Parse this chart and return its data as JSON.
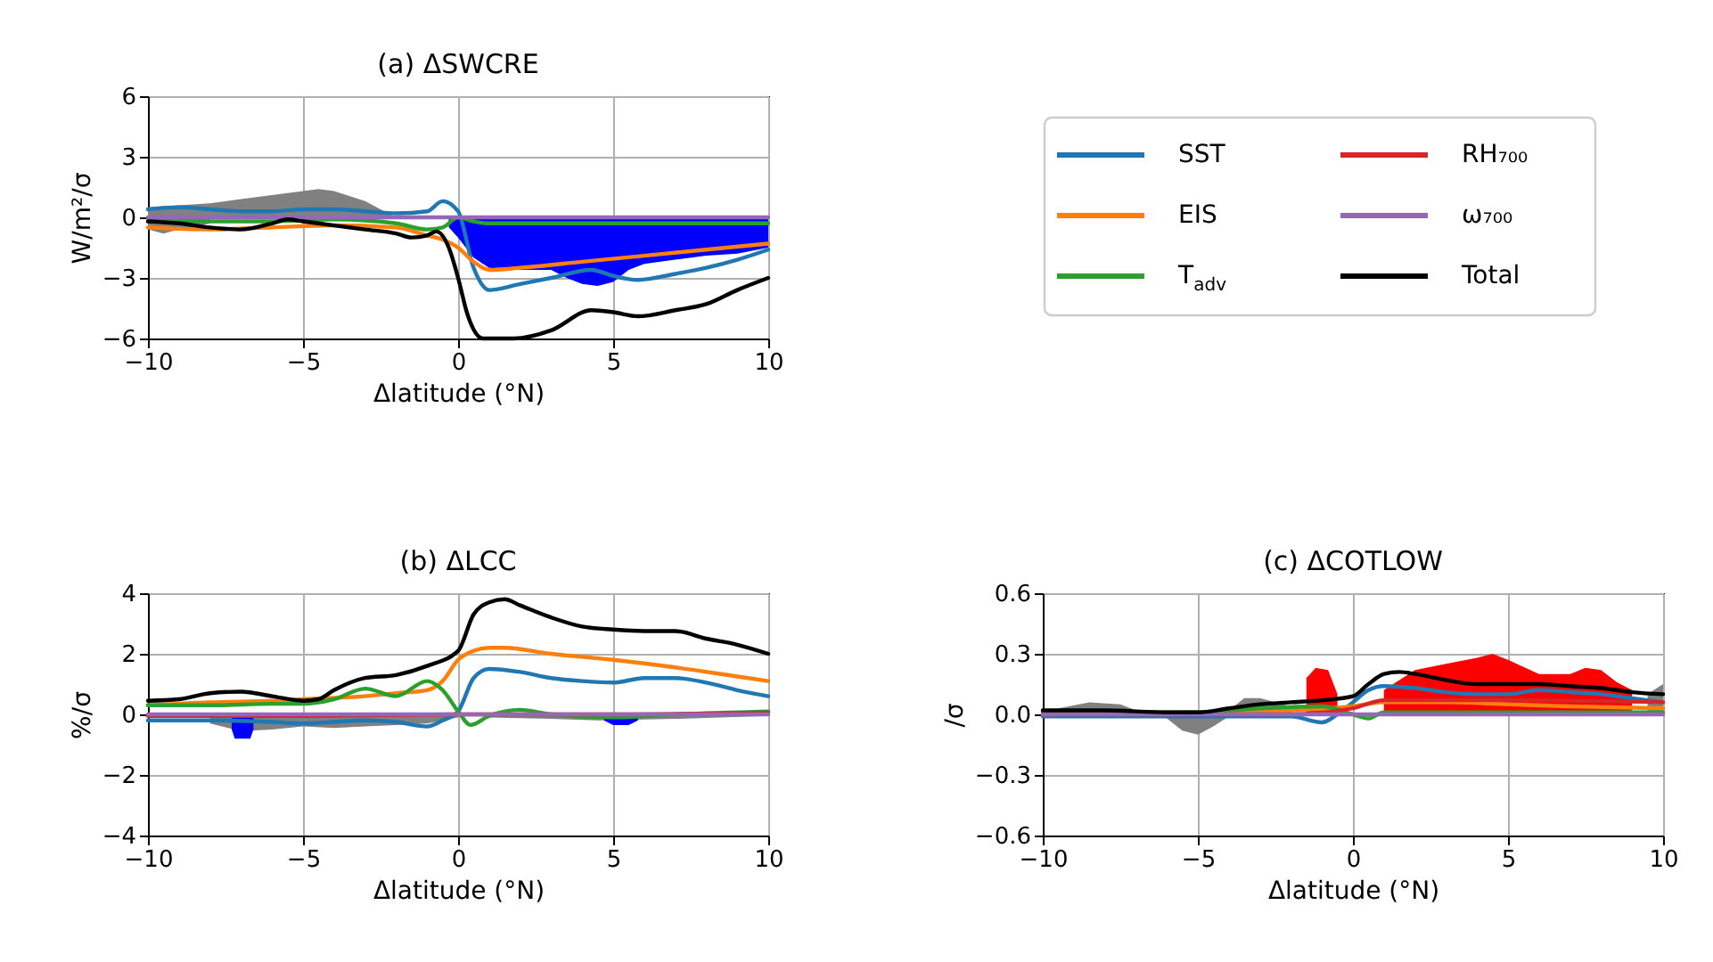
{
  "chart_data": [
    {
      "type": "line",
      "title": "(a) ΔSWCRE",
      "xlabel": "Δlatitude (°N)",
      "ylabel": "W/m²/σ",
      "xlim": [
        -10,
        10
      ],
      "xticks": [
        -10,
        -5,
        0,
        5,
        10
      ],
      "ylim": [
        -6,
        6
      ],
      "yticks": [
        -6,
        -3,
        0,
        3,
        6
      ],
      "grid": true,
      "legend": "right",
      "series": [
        {
          "type": "area",
          "color": "#808080",
          "x": [
            -10,
            -9,
            -8,
            -7,
            -6,
            -5,
            -4.5,
            -4,
            -3,
            -2.5,
            -2
          ],
          "values": [
            0.5,
            0.6,
            0.7,
            0.9,
            1.1,
            1.3,
            1.4,
            1.3,
            0.8,
            0.4,
            0
          ]
        },
        {
          "type": "area",
          "color": "#808080",
          "x": [
            -10,
            -9.5,
            -9,
            -8.5,
            -8
          ],
          "values": [
            -0.6,
            -0.8,
            -0.6,
            -0.5,
            -0.3
          ]
        },
        {
          "type": "area",
          "color": "#0000ff",
          "x": [
            -0.3,
            0,
            0.5,
            1,
            2,
            3,
            3.5,
            4,
            4.5,
            5,
            5.5,
            6,
            7,
            8,
            9,
            10
          ],
          "values": [
            -0.5,
            -1,
            -2.0,
            -2.5,
            -2.6,
            -2.6,
            -3.0,
            -3.3,
            -3.4,
            -3.2,
            -2.6,
            -2.3,
            -2.1,
            -1.9,
            -1.8,
            -1.5
          ]
        },
        {
          "name": "SST",
          "color": "#1f77b4",
          "x": [
            -10,
            -9,
            -8,
            -7,
            -6,
            -5,
            -4,
            -3,
            -2,
            -1,
            -0.5,
            0,
            0.5,
            1,
            2,
            3,
            4.3,
            5,
            5.8,
            7,
            8,
            9,
            10
          ],
          "values": [
            0.4,
            0.5,
            0.4,
            0.3,
            0.3,
            0.4,
            0.4,
            0.3,
            0.2,
            0.3,
            0.8,
            0.3,
            -2.5,
            -3.6,
            -3.3,
            -3.0,
            -2.6,
            -2.9,
            -3.1,
            -2.8,
            -2.5,
            -2.1,
            -1.6
          ]
        },
        {
          "name": "EIS",
          "color": "#ff7f0e",
          "x": [
            -10,
            -8,
            -6,
            -4,
            -2,
            -1,
            -0.5,
            0,
            0.5,
            1,
            2,
            4,
            6,
            8,
            10
          ],
          "values": [
            -0.5,
            -0.6,
            -0.5,
            -0.4,
            -0.5,
            -0.9,
            -1.1,
            -1.5,
            -2.2,
            -2.6,
            -2.5,
            -2.2,
            -1.9,
            -1.6,
            -1.3
          ]
        },
        {
          "name": "T$_{adv}$",
          "color": "#2ca02c",
          "x": [
            -10,
            -6,
            -4,
            -2,
            -1,
            -0.5,
            0,
            0.5,
            1,
            3,
            6,
            10
          ],
          "values": [
            -0.2,
            -0.2,
            -0.1,
            -0.3,
            -0.6,
            -0.5,
            0,
            -0.2,
            -0.3,
            -0.3,
            -0.3,
            -0.3
          ]
        },
        {
          "name": "RH₇₀₀",
          "color": "#d62728"
        },
        {
          "name": "ω₇₀₀",
          "color": "#9467bd",
          "x": [
            -10,
            10
          ],
          "values": [
            0,
            0
          ]
        },
        {
          "name": "Total",
          "color": "#000000",
          "x": [
            -10,
            -9,
            -8,
            -7,
            -6,
            -5.5,
            -5,
            -4,
            -3,
            -2,
            -1.5,
            -1,
            -0.7,
            -0.3,
            0,
            0.3,
            0.8,
            1.8,
            3,
            4.3,
            5,
            5.8,
            7,
            8,
            9,
            10
          ],
          "values": [
            -0.2,
            -0.3,
            -0.5,
            -0.6,
            -0.3,
            -0.1,
            -0.2,
            -0.4,
            -0.6,
            -0.8,
            -1.0,
            -0.9,
            -0.7,
            -1.5,
            -3,
            -4.8,
            -6,
            -6,
            -5.6,
            -4.6,
            -4.7,
            -4.9,
            -4.6,
            -4.3,
            -3.6,
            -3.0
          ]
        }
      ]
    },
    {
      "type": "line",
      "title": "(b) ΔLCC",
      "xlabel": "Δlatitude (°N)",
      "ylabel": "%/σ",
      "xlim": [
        -10,
        10
      ],
      "xticks": [
        -10,
        -5,
        0,
        5,
        10
      ],
      "ylim": [
        -4,
        4
      ],
      "yticks": [
        -4,
        -2,
        0,
        2,
        4
      ],
      "grid": true,
      "series": [
        {
          "type": "area",
          "color": "#808080",
          "x": [
            -8,
            -7,
            -6,
            -5,
            -4,
            -3,
            -2,
            -1,
            0
          ],
          "values": [
            -0.3,
            -0.55,
            -0.5,
            -0.4,
            -0.45,
            -0.4,
            -0.35,
            -0.3,
            -0.1
          ]
        },
        {
          "type": "area",
          "color": "#808080",
          "x": [
            1,
            3,
            4.5,
            7,
            10
          ],
          "values": [
            -0.1,
            -0.15,
            -0.2,
            -0.15,
            -0.05
          ]
        },
        {
          "type": "area",
          "color": "#0000ff",
          "x": [
            -7.3,
            -7.2,
            -6.7,
            -6.6
          ],
          "values": [
            -0.5,
            -0.8,
            -0.8,
            -0.5
          ]
        },
        {
          "type": "area",
          "color": "#0000ff",
          "x": [
            4.7,
            5,
            5.5,
            5.8
          ],
          "values": [
            -0.2,
            -0.35,
            -0.35,
            -0.2
          ]
        },
        {
          "color": "#1f77b4",
          "x": [
            -10,
            -8,
            -6,
            -5,
            -3,
            -2,
            -1,
            -0.5,
            0,
            0.5,
            1,
            2,
            3,
            4,
            5,
            6,
            7,
            8,
            9,
            10
          ],
          "values": [
            -0.2,
            -0.2,
            -0.25,
            -0.3,
            -0.2,
            -0.25,
            -0.4,
            -0.2,
            0.1,
            1.2,
            1.5,
            1.4,
            1.2,
            1.1,
            1.05,
            1.2,
            1.2,
            1.05,
            0.8,
            0.6
          ]
        },
        {
          "color": "#ff7f0e",
          "x": [
            -10,
            -8,
            -6,
            -5,
            -3,
            -2,
            -1,
            -0.5,
            0,
            0.5,
            1,
            1.5,
            3,
            5,
            7,
            9,
            10
          ],
          "values": [
            0.3,
            0.4,
            0.45,
            0.5,
            0.6,
            0.7,
            0.8,
            1.1,
            1.8,
            2.1,
            2.2,
            2.2,
            2.0,
            1.8,
            1.55,
            1.25,
            1.1
          ]
        },
        {
          "color": "#2ca02c",
          "x": [
            -10,
            -8,
            -6,
            -5,
            -4,
            -3,
            -2,
            -1,
            -0.5,
            0,
            0.4,
            1,
            2,
            3,
            5,
            7,
            10
          ],
          "values": [
            0.3,
            0.3,
            0.35,
            0.35,
            0.5,
            0.85,
            0.6,
            1.1,
            0.8,
            0.1,
            -0.35,
            -0.05,
            0.15,
            0,
            -0.1,
            0,
            0.1
          ]
        },
        {
          "color": "#d62728",
          "x": [
            -10,
            -5,
            0,
            5,
            10
          ],
          "values": [
            -0.05,
            -0.05,
            0,
            0,
            0.05
          ]
        },
        {
          "color": "#9467bd",
          "x": [
            -10,
            10
          ],
          "values": [
            0,
            0
          ]
        },
        {
          "color": "#000000",
          "x": [
            -10,
            -9,
            -8,
            -7,
            -6,
            -5,
            -4.5,
            -4,
            -3,
            -2,
            -1,
            0,
            0.5,
            1,
            1.5,
            2,
            3,
            4,
            5,
            6,
            7,
            8,
            9,
            10
          ],
          "values": [
            0.45,
            0.5,
            0.7,
            0.75,
            0.6,
            0.45,
            0.5,
            0.8,
            1.2,
            1.3,
            1.6,
            2.1,
            3.3,
            3.7,
            3.8,
            3.6,
            3.2,
            2.9,
            2.8,
            2.75,
            2.75,
            2.5,
            2.3,
            2.0
          ]
        }
      ]
    },
    {
      "type": "line",
      "title": "(c) ΔCOTLOW",
      "xlabel": "Δlatitude (°N)",
      "ylabel": "/σ",
      "xlim": [
        -10,
        10
      ],
      "xticks": [
        -10,
        -5,
        0,
        5,
        10
      ],
      "ylim": [
        -0.6,
        0.6
      ],
      "yticks": [
        -0.6,
        -0.3,
        {
          "value": 0,
          "label": "0.0"
        },
        0.3,
        0.6
      ],
      "grid": true,
      "series": [
        {
          "type": "area",
          "color": "#808080",
          "x": [
            -9.5,
            -8.5,
            -7.5,
            -7
          ],
          "values": [
            0.03,
            0.06,
            0.05,
            0.02
          ]
        },
        {
          "type": "area",
          "color": "#808080",
          "x": [
            -6,
            -5.5,
            -5,
            -4.5,
            -4
          ],
          "values": [
            -0.02,
            -0.08,
            -0.1,
            -0.06,
            -0.01
          ]
        },
        {
          "type": "area",
          "color": "#808080",
          "x": [
            -4,
            -3.5,
            -3,
            -2
          ],
          "values": [
            0.02,
            0.08,
            0.08,
            0.04
          ]
        },
        {
          "type": "area",
          "color": "#ff0000",
          "x": [
            -1.5,
            -1.2,
            -0.8,
            -0.5
          ],
          "values": [
            0.18,
            0.23,
            0.22,
            0.1
          ]
        },
        {
          "type": "area",
          "color": "#ff0000",
          "x": [
            1,
            2,
            3,
            4,
            4.5,
            5,
            6,
            7,
            7.5,
            8,
            8.5,
            9
          ],
          "values": [
            0.12,
            0.22,
            0.25,
            0.28,
            0.3,
            0.27,
            0.2,
            0.2,
            0.23,
            0.22,
            0.16,
            0.12
          ]
        },
        {
          "type": "area",
          "color": "#808080",
          "x": [
            9.5,
            10
          ],
          "values": [
            0.1,
            0.15
          ]
        },
        {
          "color": "#1f77b4",
          "x": [
            -10,
            -5,
            -2,
            -1,
            -0.5,
            0,
            0.5,
            1,
            2,
            3,
            4,
            5,
            6,
            7,
            8,
            9,
            10
          ],
          "values": [
            -0.01,
            -0.01,
            -0.01,
            -0.04,
            0,
            0.06,
            0.12,
            0.14,
            0.13,
            0.11,
            0.1,
            0.1,
            0.12,
            0.11,
            0.1,
            0.08,
            0.06
          ]
        },
        {
          "color": "#ff7f0e",
          "x": [
            -10,
            -5,
            -2,
            0,
            1,
            3,
            5,
            7,
            10
          ],
          "values": [
            0,
            0.01,
            0.02,
            0.04,
            0.06,
            0.06,
            0.05,
            0.04,
            0.03
          ]
        },
        {
          "color": "#2ca02c",
          "x": [
            -10,
            -5,
            -3,
            -1,
            0,
            0.5,
            1,
            3,
            10
          ],
          "values": [
            0.01,
            0.01,
            0.03,
            0.04,
            0,
            -0.02,
            0.01,
            0.01,
            0.01
          ]
        },
        {
          "color": "#d62728",
          "x": [
            -10,
            -2,
            0,
            1,
            5,
            10
          ],
          "values": [
            0,
            0,
            0.03,
            0.07,
            0.07,
            0.06
          ]
        },
        {
          "color": "#9467bd",
          "x": [
            -10,
            10
          ],
          "values": [
            0,
            0
          ]
        },
        {
          "color": "#000000",
          "x": [
            -10,
            -8,
            -6,
            -5,
            -4,
            -3,
            -2,
            -1,
            0,
            0.5,
            1,
            1.5,
            2,
            3,
            4,
            5,
            6,
            7,
            8,
            9,
            10
          ],
          "values": [
            0.02,
            0.02,
            0.01,
            0.01,
            0.03,
            0.05,
            0.06,
            0.07,
            0.09,
            0.15,
            0.2,
            0.21,
            0.2,
            0.17,
            0.15,
            0.15,
            0.15,
            0.14,
            0.13,
            0.11,
            0.1
          ]
        }
      ]
    }
  ]
}
